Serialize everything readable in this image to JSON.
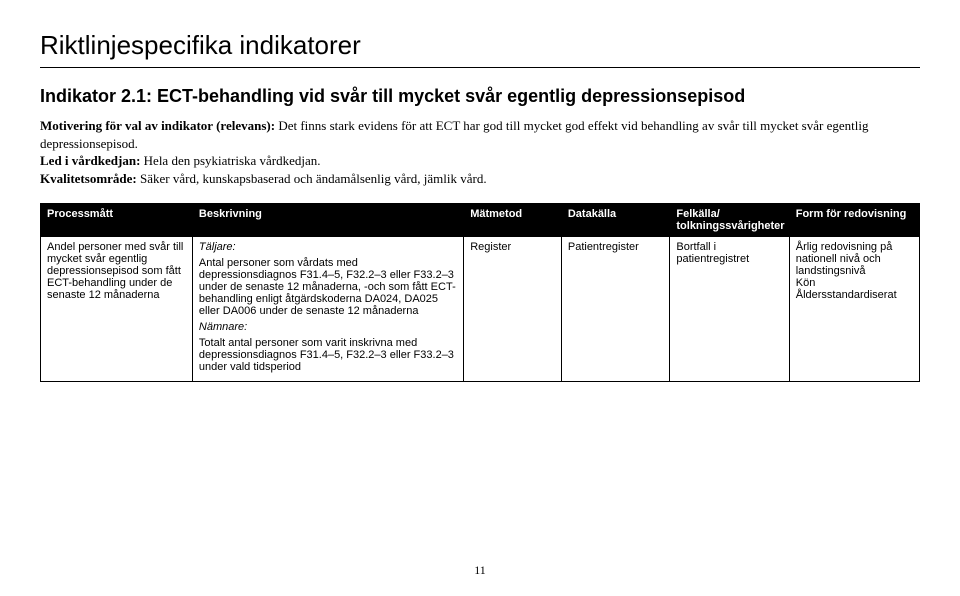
{
  "page_title": "Riktlinjespecifika indikatorer",
  "indicator_heading": "Indikator 2.1: ECT-behandling vid svår till mycket svår egentlig depressionsepisod",
  "motivation": {
    "label": "Motivering för val av indikator (relevans):",
    "text": "Det finns stark evidens för att ECT har god till mycket god effekt vid behandling av svår till mycket svår egentlig depressionsepisod."
  },
  "led": {
    "label": "Led i vårdkedjan:",
    "text": "Hela den psykiatriska vårdkedjan."
  },
  "kvalitet": {
    "label": "Kvalitetsområde:",
    "text": "Säker vård, kunskapsbaserad och ändamålsenlig vård, jämlik vård."
  },
  "table": {
    "headers": {
      "process": "Processmått",
      "desc": "Beskrivning",
      "method": "Mätmetod",
      "source": "Datakälla",
      "error": "Felkälla/ tolkningssvårigheter",
      "form": "Form för redovisning"
    },
    "row": {
      "process": "Andel personer med svår till mycket svår egentlig depressionsepisod som fått ECT-behandling under de senaste 12 månaderna",
      "desc": {
        "taljare_label": "Täljare:",
        "taljare_text": "Antal personer som vårdats med depressionsdiagnos F31.4–5, F32.2–3 eller F33.2–3 under de senaste 12 månaderna, -och som fått ECT-behandling enligt åtgärdskoderna DA024, DA025 eller DA006 under de senaste 12 månaderna",
        "namnare_label": "Nämnare:",
        "namnare_text": "Totalt antal personer som varit inskrivna med depressionsdiagnos F31.4–5, F32.2–3 eller F33.2–3 under vald tidsperiod"
      },
      "method": "Register",
      "source": "Patientregister",
      "error": "Bortfall i patientregistret",
      "form_line1": "Årlig redovisning på nationell nivå och landstingsnivå",
      "form_line2": "Kön",
      "form_line3": "Åldersstandardiserat"
    }
  },
  "page_number": "11"
}
